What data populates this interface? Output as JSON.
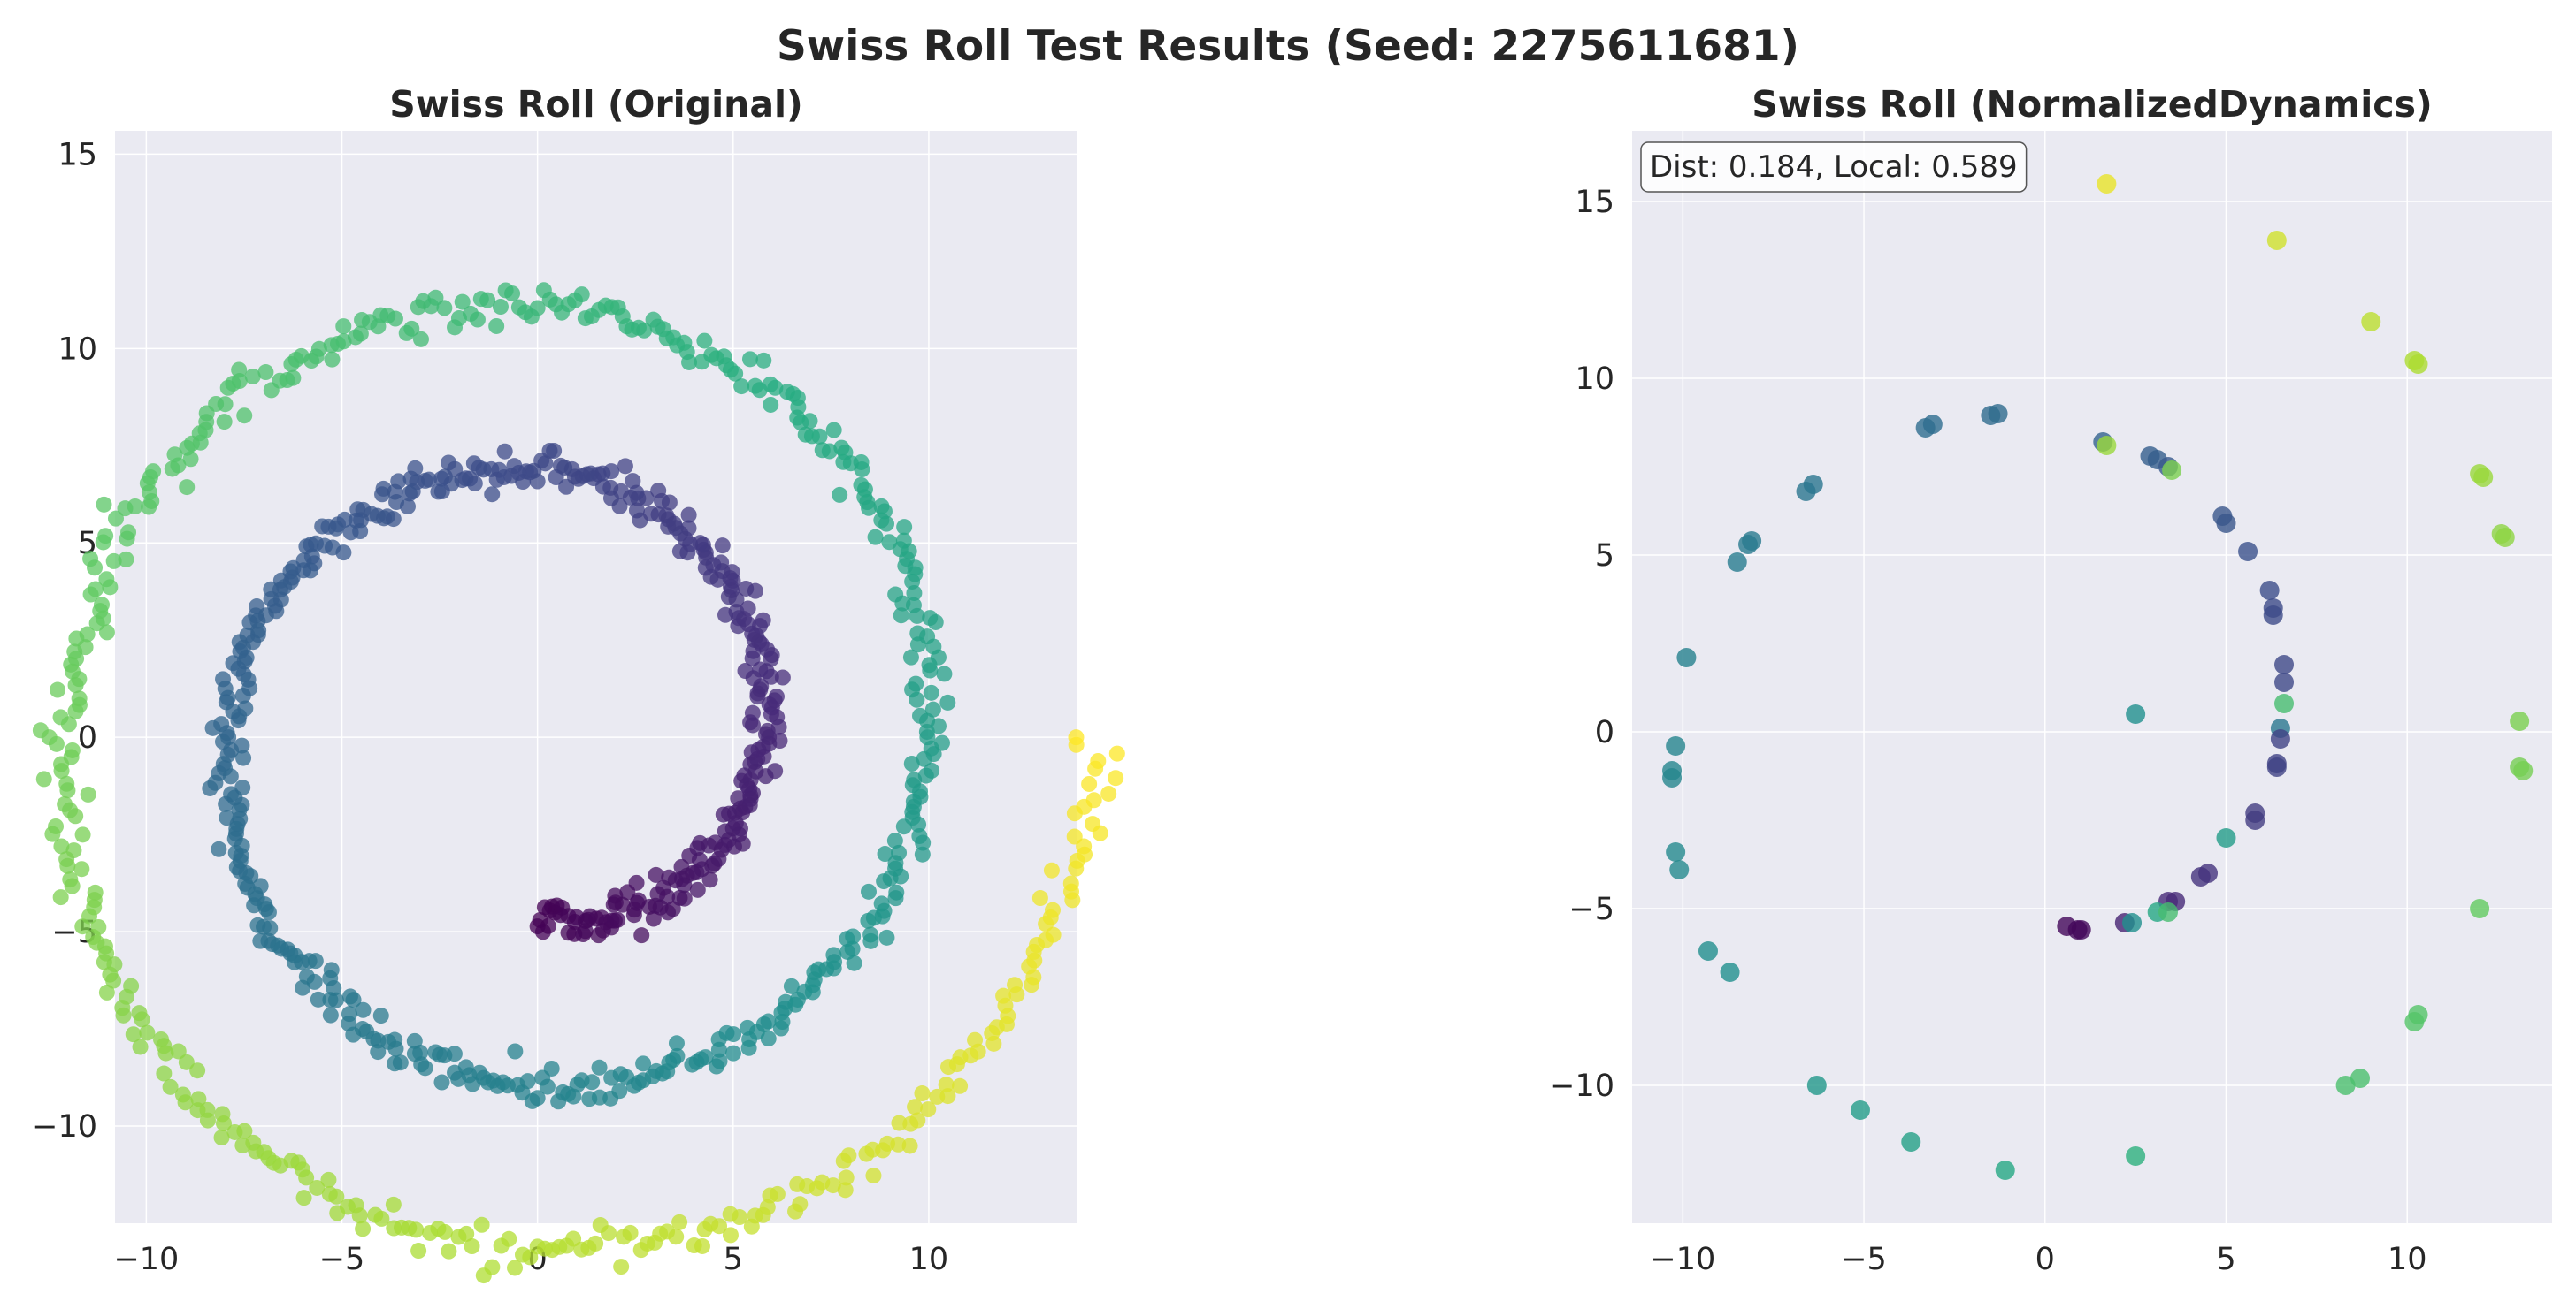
{
  "figure": {
    "suptitle": "Swiss Roll Test Results (Seed: 2275611681)",
    "background": "#ffffff",
    "axes_facecolor": "#eaeaf2",
    "grid_color": "#ffffff",
    "colormap": "viridis"
  },
  "chart_data": [
    {
      "type": "scatter",
      "title": "Swiss Roll (Original)",
      "xlabel": "",
      "ylabel": "",
      "xlim": [
        -10.8,
        13.8
      ],
      "ylim": [
        -12.5,
        15.6
      ],
      "xticks": [
        -10,
        -5,
        0,
        5,
        10
      ],
      "yticks": [
        -10,
        -5,
        0,
        5,
        10,
        15
      ],
      "grid": true,
      "legend": "none",
      "point_alpha": 0.75,
      "curve": {
        "form": "spiral",
        "r_min": 4.8,
        "r_max": 14.2,
        "theta_start_deg": 270,
        "theta_end_deg": 1080,
        "x_center": 0,
        "y_center": 0,
        "n_points": 1000,
        "noise": 0.25
      }
    },
    {
      "type": "scatter",
      "title": "Swiss Roll (NormalizedDynamics)",
      "xlabel": "",
      "ylabel": "",
      "xlim": [
        -11.4,
        14.0
      ],
      "ylim": [
        -13.9,
        17.0
      ],
      "xticks": [
        -10,
        -5,
        0,
        5,
        10
      ],
      "yticks": [
        -10,
        -5,
        0,
        5,
        10,
        15
      ],
      "grid": true,
      "legend": "none",
      "annotation": "Dist: 0.184, Local: 0.589",
      "point_alpha": 0.8,
      "points": [
        [
          1.7,
          15.5,
          0.97
        ],
        [
          6.4,
          13.9,
          0.93
        ],
        [
          9.0,
          11.6,
          0.9
        ],
        [
          10.2,
          10.5,
          0.88
        ],
        [
          10.3,
          10.4,
          0.88
        ],
        [
          12.0,
          7.3,
          0.85
        ],
        [
          12.1,
          7.2,
          0.85
        ],
        [
          12.6,
          5.6,
          0.83
        ],
        [
          12.7,
          5.5,
          0.83
        ],
        [
          13.1,
          0.3,
          0.8
        ],
        [
          13.1,
          -1.0,
          0.79
        ],
        [
          13.2,
          -1.1,
          0.79
        ],
        [
          12.0,
          -5.0,
          0.76
        ],
        [
          10.3,
          -8.0,
          0.73
        ],
        [
          10.2,
          -8.2,
          0.73
        ],
        [
          8.7,
          -9.8,
          0.71
        ],
        [
          8.3,
          -10.0,
          0.71
        ],
        [
          2.5,
          -12.0,
          0.64
        ],
        [
          -1.1,
          -12.4,
          0.6
        ],
        [
          -3.7,
          -11.6,
          0.57
        ],
        [
          -5.1,
          -10.7,
          0.55
        ],
        [
          -6.3,
          -10.0,
          0.53
        ],
        [
          -8.7,
          -6.8,
          0.5
        ],
        [
          -9.3,
          -6.2,
          0.49
        ],
        [
          -10.1,
          -3.9,
          0.47
        ],
        [
          -10.2,
          -3.4,
          0.47
        ],
        [
          -10.3,
          -1.3,
          0.46
        ],
        [
          -10.3,
          -1.1,
          0.46
        ],
        [
          -10.2,
          -0.4,
          0.45
        ],
        [
          -9.9,
          2.1,
          0.44
        ],
        [
          -8.5,
          4.8,
          0.42
        ],
        [
          -8.2,
          5.3,
          0.41
        ],
        [
          -8.1,
          5.4,
          0.41
        ],
        [
          -6.6,
          6.8,
          0.39
        ],
        [
          -6.4,
          7.0,
          0.39
        ],
        [
          -3.3,
          8.6,
          0.36
        ],
        [
          -3.1,
          8.7,
          0.36
        ],
        [
          -1.5,
          8.95,
          0.35
        ],
        [
          -1.3,
          9.0,
          0.35
        ],
        [
          1.6,
          8.2,
          0.32
        ],
        [
          1.7,
          8.1,
          0.85
        ],
        [
          2.9,
          7.8,
          0.3
        ],
        [
          3.1,
          7.7,
          0.3
        ],
        [
          3.4,
          7.5,
          0.28
        ],
        [
          3.5,
          7.4,
          0.8
        ],
        [
          4.9,
          6.1,
          0.27
        ],
        [
          5.0,
          5.9,
          0.27
        ],
        [
          5.6,
          5.1,
          0.25
        ],
        [
          6.2,
          4.0,
          0.24
        ],
        [
          6.3,
          3.5,
          0.23
        ],
        [
          6.3,
          3.3,
          0.23
        ],
        [
          6.6,
          1.9,
          0.22
        ],
        [
          6.6,
          1.4,
          0.22
        ],
        [
          6.6,
          0.8,
          0.7
        ],
        [
          6.5,
          0.1,
          0.4
        ],
        [
          6.5,
          -0.2,
          0.2
        ],
        [
          6.4,
          -0.9,
          0.2
        ],
        [
          6.4,
          -1.0,
          0.2
        ],
        [
          5.8,
          -2.3,
          0.18
        ],
        [
          5.8,
          -2.5,
          0.18
        ],
        [
          5.0,
          -3.0,
          0.55
        ],
        [
          4.5,
          -4.0,
          0.15
        ],
        [
          4.3,
          -4.1,
          0.15
        ],
        [
          3.6,
          -4.8,
          0.12
        ],
        [
          3.4,
          -4.8,
          0.12
        ],
        [
          3.1,
          -5.1,
          0.6
        ],
        [
          3.4,
          -5.1,
          0.7
        ],
        [
          2.2,
          -5.4,
          0.1
        ],
        [
          2.4,
          -5.4,
          0.5
        ],
        [
          1.0,
          -5.6,
          0.02
        ],
        [
          0.6,
          -5.5,
          0.02
        ],
        [
          0.9,
          -5.6,
          0.02
        ],
        [
          2.5,
          0.5,
          0.5
        ]
      ]
    }
  ]
}
